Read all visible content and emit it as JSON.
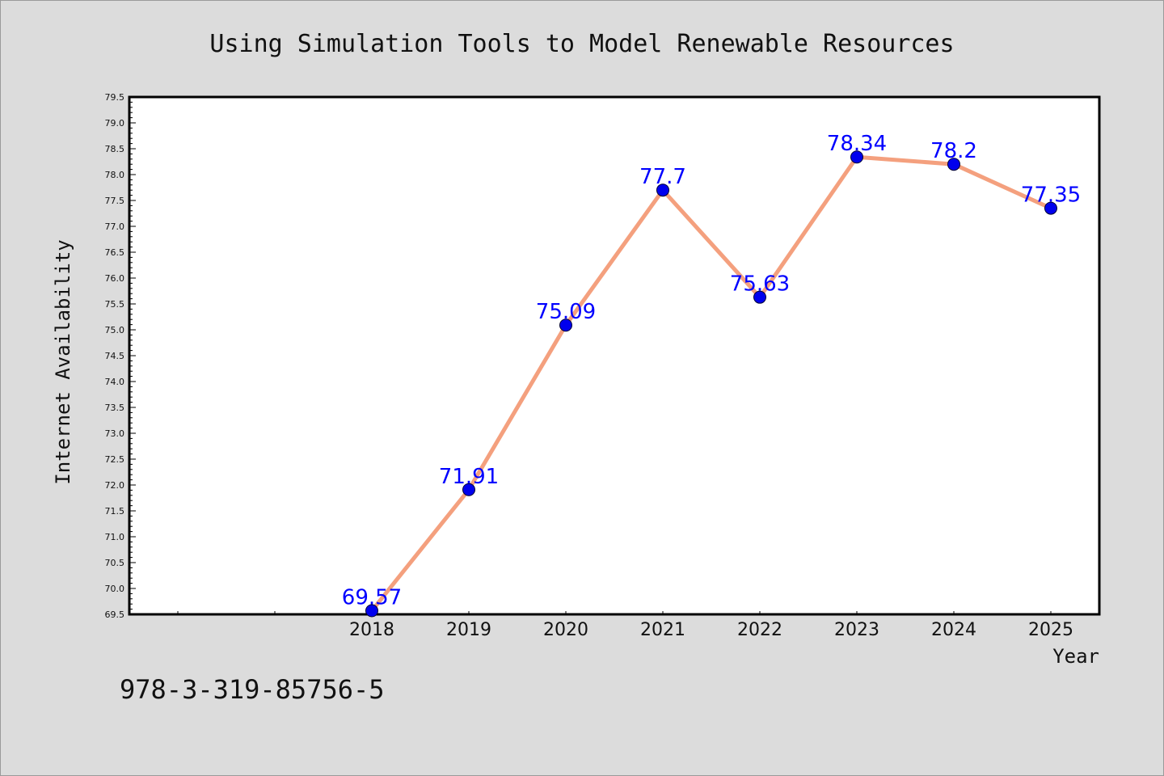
{
  "chart_data": {
    "type": "line",
    "title": "Using Simulation Tools to Model Renewable Resources",
    "xlabel": "Year",
    "ylabel": "Internet Availability",
    "categories": [
      "2018",
      "2019",
      "2020",
      "2021",
      "2022",
      "2023",
      "2024",
      "2025"
    ],
    "series": [
      {
        "values": [
          69.57,
          71.91,
          75.09,
          77.7,
          75.63,
          78.34,
          78.2,
          77.35
        ]
      }
    ],
    "data_labels": [
      "69.57",
      "71.91",
      "75.09",
      "77.7",
      "75.63",
      "78.34",
      "78.2",
      "77.35"
    ],
    "ylim": [
      69.5,
      79.5
    ],
    "yticks": [
      "69.5",
      "70.0",
      "70.5",
      "71.0",
      "71.5",
      "72.0",
      "72.5",
      "73.0",
      "73.5",
      "74.0",
      "74.5",
      "75.0",
      "75.5",
      "76.0",
      "76.5",
      "77.0",
      "77.5",
      "78.0",
      "78.5",
      "79.0",
      "79.5"
    ],
    "grid": false,
    "colors": {
      "line": "#f4a07e",
      "marker": "#0000ee",
      "label": "#0000ff",
      "background": "#dcdcdc",
      "plot_area": "#ffffff"
    }
  },
  "footer_text": "978-3-319-85756-5"
}
